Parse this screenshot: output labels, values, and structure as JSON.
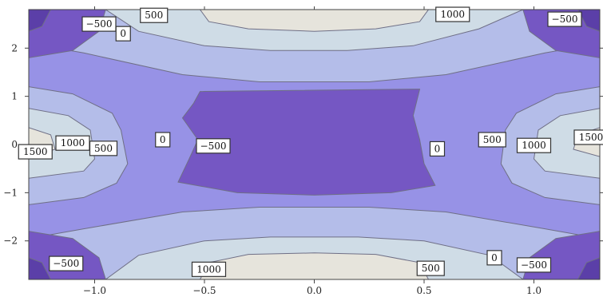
{
  "chart_data": {
    "type": "contour",
    "xlim": [
      -1.3,
      1.3
    ],
    "ylim": [
      -2.8,
      2.8
    ],
    "x_ticks": [
      -1.0,
      -0.5,
      0.0,
      0.5,
      1.0
    ],
    "x_tick_labels": [
      "−1.0",
      "−0.5",
      "0.0",
      "0.5",
      "1.0"
    ],
    "y_ticks": [
      -2,
      -1,
      0,
      1,
      2
    ],
    "y_tick_labels": [
      "−2",
      "−1",
      "0",
      "1",
      "2"
    ],
    "contour_levels": [
      -500,
      0,
      500,
      1000,
      1500
    ],
    "grid": false,
    "legend": "none",
    "colors": {
      "below_-500": "#5b3fa8",
      "-500_to_0": "#7557c3",
      "0_to_500": "#9792e6",
      "500_to_1000": "#b4bde9",
      "1000_to_1500": "#cfdce6",
      "above_1500": "#e6e4dc",
      "contour_line": "#6f6f86"
    },
    "labels": [
      {
        "text": "−500",
        "x": -0.98,
        "y": 2.5
      },
      {
        "text": "0",
        "x": -0.87,
        "y": 2.3
      },
      {
        "text": "500",
        "x": -0.73,
        "y": 2.68
      },
      {
        "text": "1000",
        "x": 0.63,
        "y": 2.7
      },
      {
        "text": "−500",
        "x": 1.14,
        "y": 2.6
      },
      {
        "text": "1000",
        "x": -1.1,
        "y": 0.03
      },
      {
        "text": "1500",
        "x": -1.27,
        "y": -0.15
      },
      {
        "text": "500",
        "x": -0.96,
        "y": -0.08
      },
      {
        "text": "0",
        "x": -0.69,
        "y": 0.1
      },
      {
        "text": "−500",
        "x": -0.46,
        "y": -0.03
      },
      {
        "text": "0",
        "x": 0.56,
        "y": -0.09
      },
      {
        "text": "500",
        "x": 0.81,
        "y": 0.1
      },
      {
        "text": "1000",
        "x": 1.0,
        "y": -0.02
      },
      {
        "text": "1500",
        "x": 1.26,
        "y": 0.15
      },
      {
        "text": "−500",
        "x": -1.13,
        "y": -2.47
      },
      {
        "text": "1000",
        "x": -0.48,
        "y": -2.59
      },
      {
        "text": "500",
        "x": 0.53,
        "y": -2.57
      },
      {
        "text": "0",
        "x": 0.82,
        "y": -2.35
      },
      {
        "text": "−500",
        "x": 1.0,
        "y": -2.5
      }
    ]
  }
}
